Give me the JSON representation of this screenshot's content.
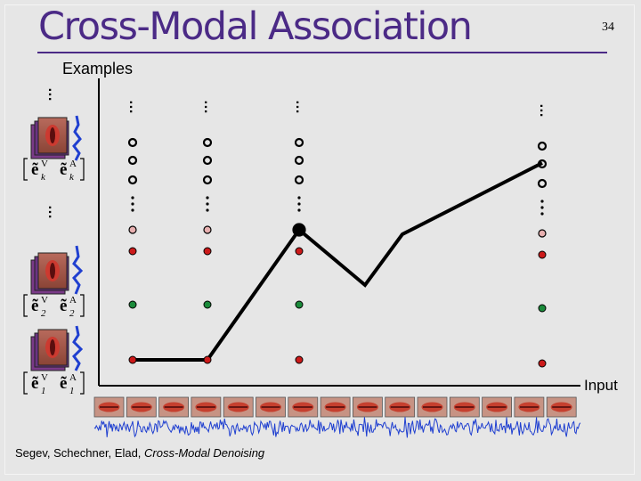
{
  "slide": {
    "title": "Cross-Modal Association",
    "page_number": "34",
    "examples_label": "Examples",
    "input_label": "Input",
    "footer": {
      "authors": "Segev, Schechner, Elad,",
      "paper": "Cross-Modal Denoising"
    },
    "ellipsis": "…"
  },
  "example_pairs": [
    {
      "video": "ẽ",
      "video_sup": "V",
      "video_sub": "k",
      "audio": "ẽ",
      "audio_sup": "A",
      "audio_sub": "k"
    },
    {
      "video": "ẽ",
      "video_sup": "V",
      "video_sub": "2",
      "audio": "ẽ",
      "audio_sup": "A",
      "audio_sub": "2"
    },
    {
      "video": "ẽ",
      "video_sup": "V",
      "video_sub": "1",
      "audio": "ẽ",
      "audio_sup": "A",
      "audio_sub": "1"
    }
  ],
  "colors": {
    "title": "#4b2a86",
    "background": "#e6e6e6",
    "dot_red": "#cc1a1a",
    "dot_green": "#1a8a3a",
    "dot_pink": "#e8b0b0",
    "path": "#000000",
    "waveform": "#1f3fd0"
  },
  "icons": [
    "lip-frame-stack-icon",
    "audio-waveform-icon",
    "lip-thumbnail-icon",
    "input-waveform-icon"
  ],
  "input_frame_count": 15
}
